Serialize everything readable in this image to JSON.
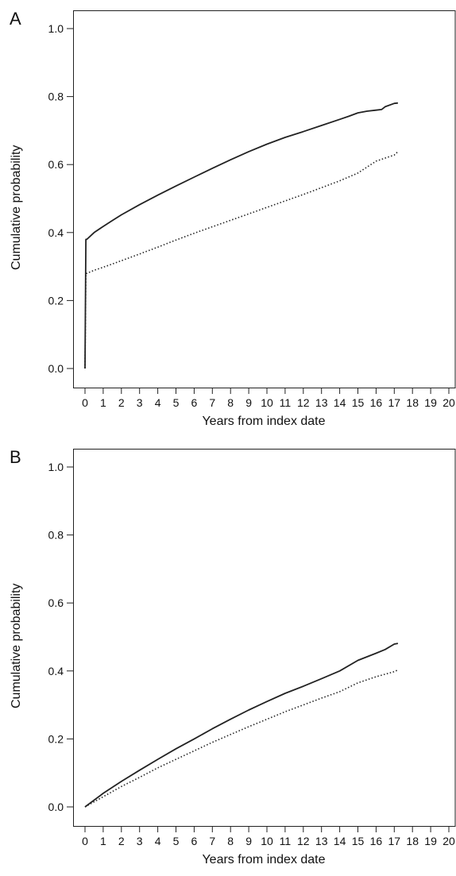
{
  "chart_data": [
    {
      "type": "line",
      "panel_label": "A",
      "xlabel": "Years from index date",
      "ylabel": "Cumulative probability",
      "title": "",
      "xlim": [
        0,
        20
      ],
      "ylim": [
        0,
        1.0
      ],
      "xticks": [
        "0",
        "1",
        "2",
        "3",
        "4",
        "5",
        "6",
        "7",
        "8",
        "9",
        "10",
        "11",
        "12",
        "13",
        "14",
        "15",
        "16",
        "17",
        "18",
        "19",
        "20"
      ],
      "yticks": [
        "0.0",
        "0.2",
        "0.4",
        "0.6",
        "0.8",
        "1.0"
      ],
      "grid": false,
      "series": [
        {
          "style": "solid",
          "color": "#222222",
          "x": [
            0,
            0.05,
            0.1,
            0.5,
            1,
            1.5,
            2,
            3,
            4,
            5,
            6,
            7,
            8,
            9,
            10,
            11,
            12,
            13,
            14,
            14.5,
            15,
            15.5,
            16,
            16.3,
            16.5,
            17,
            17.2
          ],
          "y": [
            0.0,
            0.38,
            0.38,
            0.4,
            0.418,
            0.435,
            0.452,
            0.482,
            0.51,
            0.537,
            0.563,
            0.589,
            0.614,
            0.638,
            0.66,
            0.68,
            0.697,
            0.715,
            0.733,
            0.742,
            0.752,
            0.757,
            0.76,
            0.762,
            0.77,
            0.78,
            0.781
          ]
        },
        {
          "style": "dotted",
          "color": "#222222",
          "x": [
            0,
            0.05,
            0.1,
            0.5,
            1,
            2,
            3,
            4,
            5,
            6,
            7,
            8,
            9,
            10,
            11,
            12,
            13,
            14,
            15,
            16,
            17,
            17.2
          ],
          "y": [
            0.0,
            0.28,
            0.28,
            0.289,
            0.298,
            0.317,
            0.337,
            0.357,
            0.378,
            0.398,
            0.417,
            0.436,
            0.455,
            0.474,
            0.493,
            0.512,
            0.532,
            0.552,
            0.575,
            0.61,
            0.628,
            0.638
          ]
        }
      ]
    },
    {
      "type": "line",
      "panel_label": "B",
      "xlabel": "Years from index date",
      "ylabel": "Cumulative probability",
      "title": "",
      "xlim": [
        0,
        20
      ],
      "ylim": [
        0,
        1.0
      ],
      "xticks": [
        "0",
        "1",
        "2",
        "3",
        "4",
        "5",
        "6",
        "7",
        "8",
        "9",
        "10",
        "11",
        "12",
        "13",
        "14",
        "15",
        "16",
        "17",
        "18",
        "19",
        "20"
      ],
      "yticks": [
        "0.0",
        "0.2",
        "0.4",
        "0.6",
        "0.8",
        "1.0"
      ],
      "grid": false,
      "series": [
        {
          "style": "solid",
          "color": "#222222",
          "x": [
            0,
            1,
            2,
            3,
            4,
            5,
            6,
            7,
            8,
            9,
            10,
            11,
            12,
            13,
            14,
            15,
            16,
            16.5,
            17,
            17.2
          ],
          "y": [
            0.0,
            0.04,
            0.075,
            0.108,
            0.14,
            0.171,
            0.2,
            0.23,
            0.258,
            0.285,
            0.31,
            0.334,
            0.355,
            0.377,
            0.4,
            0.431,
            0.452,
            0.463,
            0.479,
            0.481
          ]
        },
        {
          "style": "dotted",
          "color": "#222222",
          "x": [
            0,
            1,
            2,
            3,
            4,
            5,
            6,
            7,
            8,
            9,
            10,
            11,
            12,
            13,
            14,
            15,
            16,
            17,
            17.2
          ],
          "y": [
            0.0,
            0.03,
            0.06,
            0.087,
            0.115,
            0.14,
            0.165,
            0.19,
            0.213,
            0.236,
            0.258,
            0.28,
            0.3,
            0.32,
            0.339,
            0.365,
            0.383,
            0.398,
            0.403
          ]
        }
      ]
    }
  ]
}
